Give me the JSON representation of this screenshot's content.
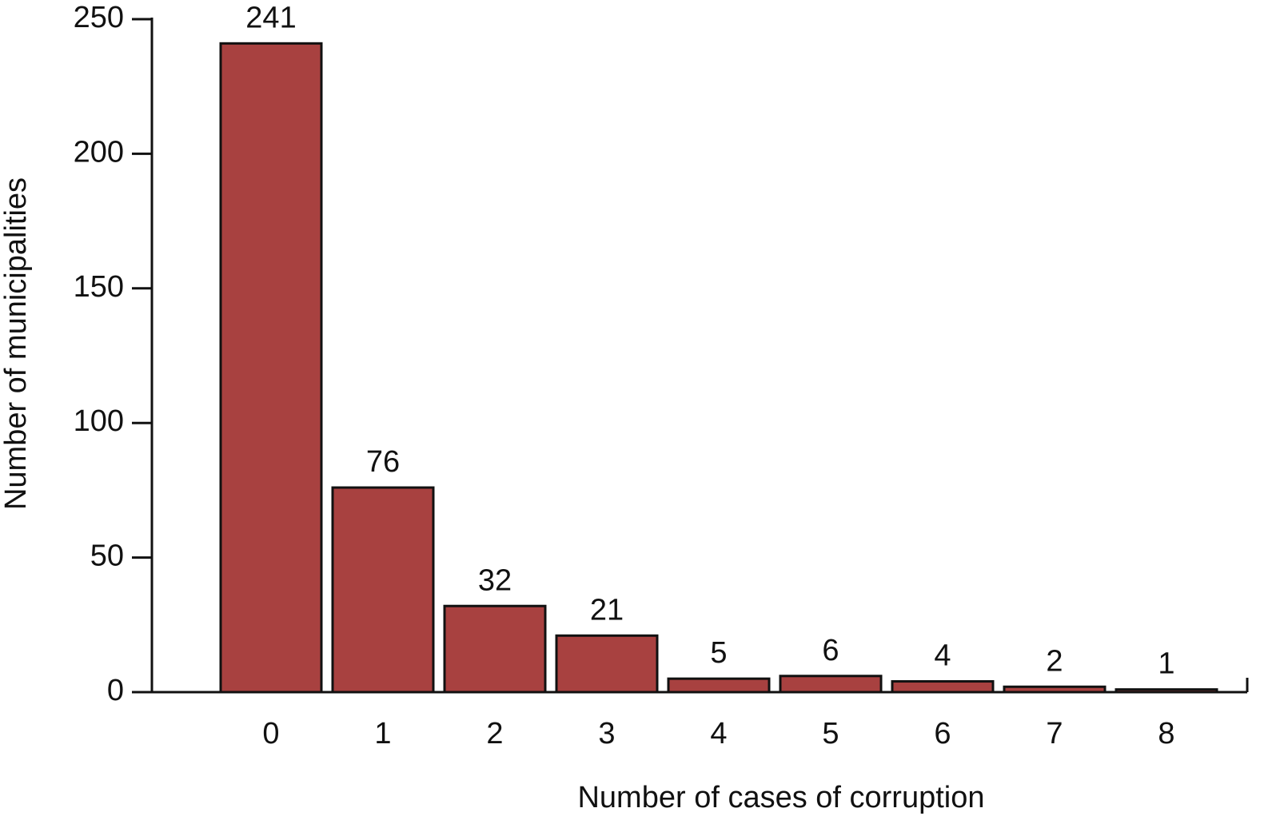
{
  "chart_data": {
    "type": "bar",
    "x_label": "Number of cases of corruption",
    "y_label": "Number of municipalities",
    "categories": [
      "0",
      "1",
      "2",
      "3",
      "4",
      "5",
      "6",
      "7",
      "8"
    ],
    "values": [
      241,
      76,
      32,
      21,
      5,
      6,
      4,
      2,
      1
    ],
    "color": "#a84140",
    "ylim": [
      0,
      250
    ],
    "yticks": [
      0,
      50,
      100,
      150,
      200,
      250
    ],
    "grid": false
  }
}
